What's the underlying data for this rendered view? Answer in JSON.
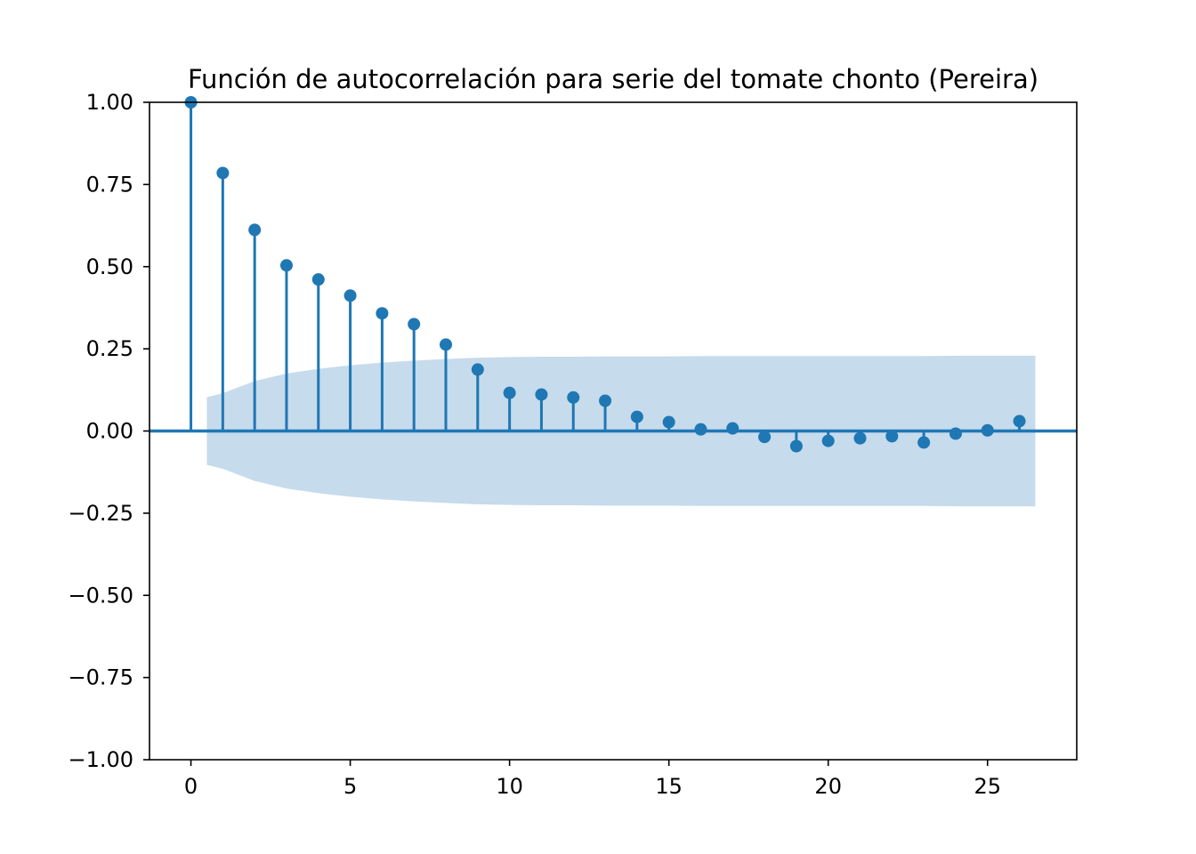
{
  "chart_data": {
    "type": "stem",
    "title": "Función de autocorrelación para serie del tomate chonto (Pereira)",
    "xlabel": "",
    "ylabel": "",
    "xlim": [
      -1.3,
      27.8
    ],
    "ylim": [
      -1.0,
      1.0
    ],
    "x_ticks": [
      0,
      5,
      10,
      15,
      20,
      25
    ],
    "x_tick_labels": [
      "0",
      "5",
      "10",
      "15",
      "20",
      "25"
    ],
    "y_ticks": [
      1.0,
      0.75,
      0.5,
      0.25,
      0.0,
      -0.25,
      -0.5,
      -0.75,
      -1.0
    ],
    "y_tick_labels": [
      "1.00",
      "0.75",
      "0.50",
      "0.25",
      "0.00",
      "−0.25",
      "−0.50",
      "−0.75",
      "−1.00"
    ],
    "grid": false,
    "series": [
      {
        "x": [
          0,
          1,
          2,
          3,
          4,
          5,
          6,
          7,
          8,
          9,
          10,
          11,
          12,
          13,
          14,
          15,
          16,
          17,
          18,
          19,
          20,
          21,
          22,
          23,
          24,
          25,
          26
        ],
        "values": [
          1.0,
          0.785,
          0.612,
          0.504,
          0.461,
          0.412,
          0.358,
          0.325,
          0.263,
          0.187,
          0.116,
          0.111,
          0.102,
          0.092,
          0.043,
          0.027,
          0.005,
          0.008,
          -0.018,
          -0.046,
          -0.03,
          -0.022,
          -0.016,
          -0.035,
          -0.008,
          0.002,
          0.03
        ]
      }
    ],
    "confidence_band": {
      "x": [
        0.5,
        1,
        2,
        3,
        4,
        5,
        6,
        7,
        8,
        9,
        10,
        11,
        12,
        13,
        14,
        15,
        16,
        17,
        18,
        19,
        20,
        21,
        22,
        23,
        24,
        25,
        26,
        26.5
      ],
      "upper": [
        0.103,
        0.115,
        0.152,
        0.175,
        0.189,
        0.2,
        0.208,
        0.214,
        0.219,
        0.223,
        0.225,
        0.226,
        0.226,
        0.227,
        0.227,
        0.227,
        0.228,
        0.228,
        0.228,
        0.228,
        0.228,
        0.228,
        0.228,
        0.228,
        0.229,
        0.229,
        0.229,
        0.229
      ]
    },
    "colors": {
      "stem": "#1f77b4",
      "band": "#c6dbec",
      "zero_line": "#1f77b4",
      "axes": "#000000"
    }
  }
}
